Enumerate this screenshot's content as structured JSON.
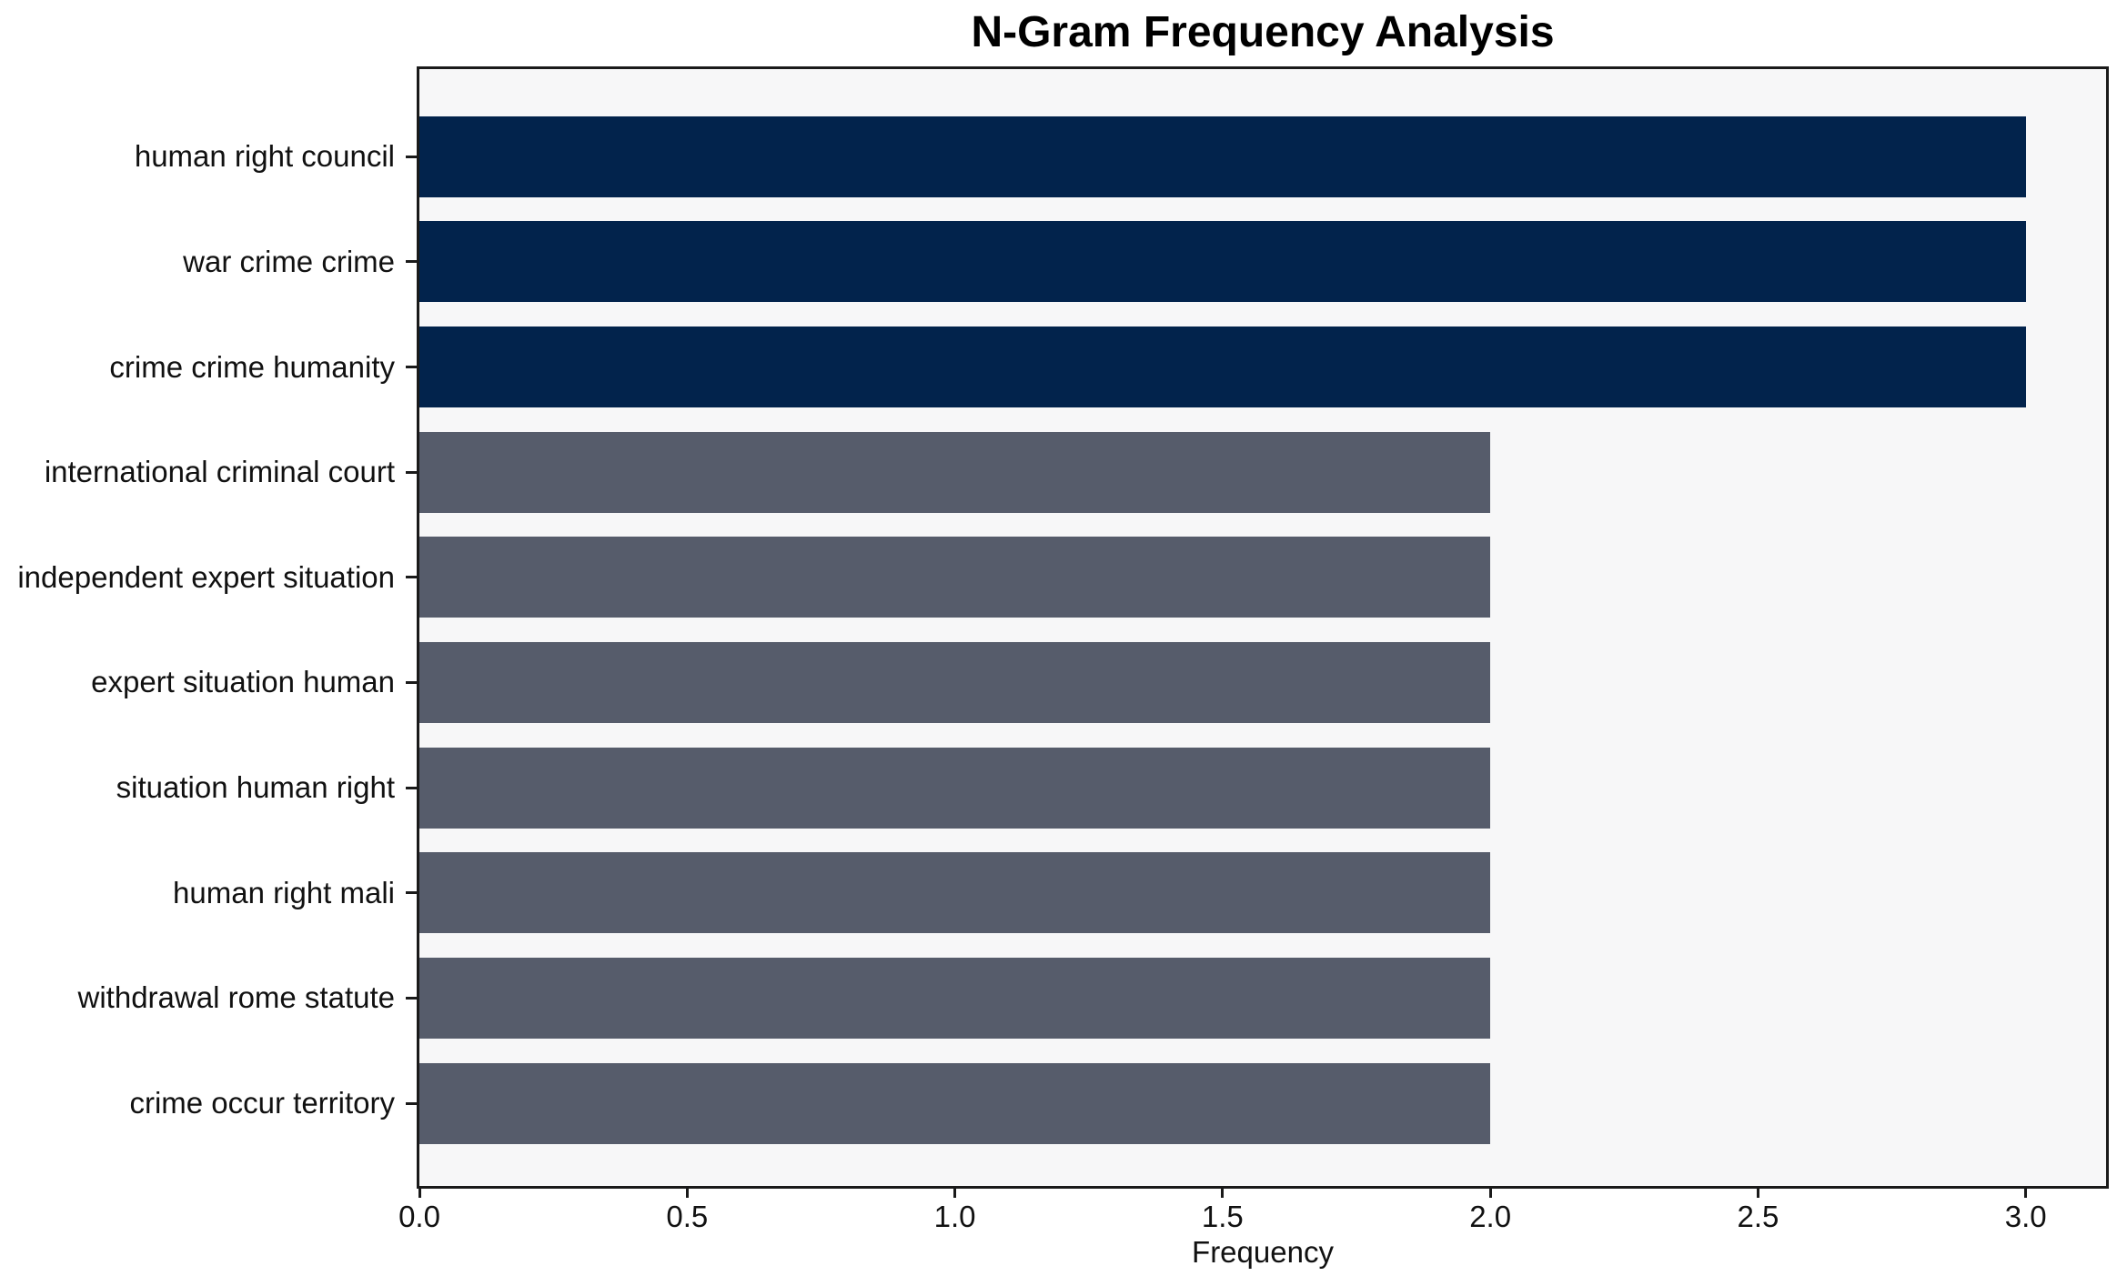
{
  "chart_data": {
    "type": "bar",
    "orientation": "horizontal",
    "title": "N-Gram Frequency Analysis",
    "xlabel": "Frequency",
    "ylabel": "",
    "categories": [
      "human right council",
      "war crime crime",
      "crime crime humanity",
      "international criminal court",
      "independent expert situation",
      "expert situation human",
      "situation human right",
      "human right mali",
      "withdrawal rome statute",
      "crime occur territory"
    ],
    "values": [
      3,
      3,
      3,
      2,
      2,
      2,
      2,
      2,
      2,
      2
    ],
    "bar_colors": [
      "#02234C",
      "#02234C",
      "#02234C",
      "#565C6B",
      "#565C6B",
      "#565C6B",
      "#565C6B",
      "#565C6B",
      "#565C6B",
      "#565C6B"
    ],
    "xticks": [
      0.0,
      0.5,
      1.0,
      1.5,
      2.0,
      2.5,
      3.0
    ],
    "xtick_labels": [
      "0.0",
      "0.5",
      "1.0",
      "1.5",
      "2.0",
      "2.5",
      "3.0"
    ],
    "xlim": [
      0,
      3.15
    ],
    "grid": false,
    "legend": null,
    "colors": {
      "bar_high": "#02234C",
      "bar_low": "#565C6B",
      "plot_background": "#F7F7F8",
      "figure_background": "#FFFFFF",
      "spine": "#1A1A1A"
    }
  }
}
